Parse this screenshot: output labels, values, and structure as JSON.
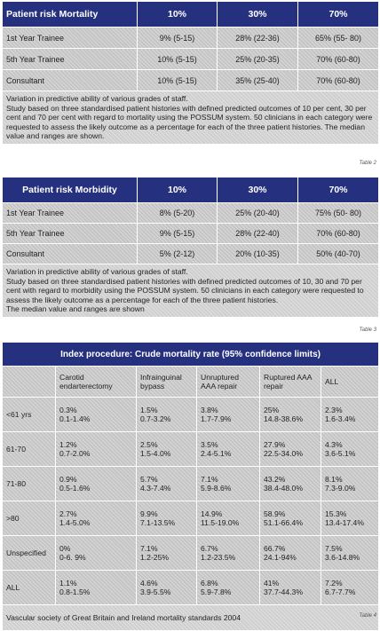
{
  "table1": {
    "header": [
      "Patient risk Mortality",
      "10%",
      "30%",
      "70%"
    ],
    "rows": [
      [
        "1st Year Trainee",
        "9% (5-15)",
        "28% (22-36)",
        "65% (55- 80)"
      ],
      [
        "5th Year Trainee",
        "10% (5-15)",
        "25% (20-35)",
        "70% (60-80)"
      ],
      [
        "Consultant",
        "10% (5-15)",
        "35% (25-40)",
        "70% (60-80)"
      ]
    ],
    "note": [
      "Variation in predictive ability of various grades of staff.",
      "Study based on three standardised patient histories with defined predicted outcomes of 10 per cent, 30 per cent and 70 per cent with regard to mortality using the POSSUM system. 50 clinicians in each category were requested to assess the likely outcome as a percentage for each of the three patient histories. The median value and ranges are shown."
    ],
    "caption": "Table 2"
  },
  "table2": {
    "header": [
      "Patient risk Morbidity",
      "10%",
      "30%",
      "70%"
    ],
    "rows": [
      [
        "1st Year Trainee",
        "8% (5-20)",
        "25% (20-40)",
        "75% (50- 80)"
      ],
      [
        "5th Year Trainee",
        "9% (5-15)",
        "28% (22-40)",
        "70% (60-80)"
      ],
      [
        "Consultant",
        "5% (2-12)",
        "20% (10-35)",
        "50% (40-70)"
      ]
    ],
    "note": [
      "Variation in predictive ability of various grades of staff.",
      "Study based on three standardised patient histories with defined predicted outcomes of 10, 30 and 70 per cent with regard to morbidity using the POSSUM system. 50 clinicians in each category were requested to assess the likely outcome as a percentage for each of the three patient histories.",
      "The median value and ranges are shown"
    ],
    "caption": "Table 3"
  },
  "table3": {
    "title": "Index procedure: Crude mortality rate (95% confidence limits)",
    "columns": [
      "Carotid endarterectomy",
      "Infrainguinal bypass",
      "Unruptured AAA repair",
      "Ruptured AAA repair",
      "ALL"
    ],
    "rows": [
      {
        "label": "<61 yrs",
        "cells": [
          [
            "0.3%",
            "0.1-1.4%"
          ],
          [
            "1.5%",
            "0.7-3.2%"
          ],
          [
            "3.8%",
            "1.7-7.9%"
          ],
          [
            "25%",
            "14.8-38.6%"
          ],
          [
            "2.3%",
            "1.6-3.4%"
          ]
        ]
      },
      {
        "label": "61-70",
        "cells": [
          [
            "1.2%",
            "0.7-2.0%"
          ],
          [
            "2.5%",
            "1.5-4.0%"
          ],
          [
            "3.5%",
            "2.4-5.1%"
          ],
          [
            "27.9%",
            "22.5-34.0%"
          ],
          [
            "4.3%",
            "3.6-5.1%"
          ]
        ]
      },
      {
        "label": "71-80",
        "cells": [
          [
            "0.9%",
            "0.5-1.6%"
          ],
          [
            "5.7%",
            "4.3-7.4%"
          ],
          [
            "7.1%",
            "5.9-8.6%"
          ],
          [
            "43.2%",
            "38.4-48.0%"
          ],
          [
            "8.1%",
            "7.3-9.0%"
          ]
        ]
      },
      {
        "label": ">80",
        "cells": [
          [
            "2.7%",
            "1.4-5.0%"
          ],
          [
            "9.9%",
            "7.1-13.5%"
          ],
          [
            "14.9%",
            "11.5-19.0%"
          ],
          [
            "58.9%",
            "51.1-66.4%"
          ],
          [
            "15.3%",
            "13.4-17.4%"
          ]
        ]
      },
      {
        "label": "Unspecified",
        "cells": [
          [
            "0%",
            "0-6. 9%"
          ],
          [
            "7.1%",
            "1.2-25%"
          ],
          [
            "6.7%",
            "1.2-23.5%"
          ],
          [
            "66.7%",
            "24.1-94%"
          ],
          [
            "7.5%",
            "3.6-14.8%"
          ]
        ]
      },
      {
        "label": "ALL",
        "cells": [
          [
            "1.1%",
            "0.8-1.5%"
          ],
          [
            "4.6%",
            "3.9-5.5%"
          ],
          [
            "6.8%",
            "5.9-7.8%"
          ],
          [
            "41%",
            "37.7-44.3%"
          ],
          [
            "7.2%",
            "6.7-7.7%"
          ]
        ]
      }
    ],
    "note": "Vascular society of Great Britain and Ireland mortality standards 2004",
    "caption": "Table 4"
  }
}
